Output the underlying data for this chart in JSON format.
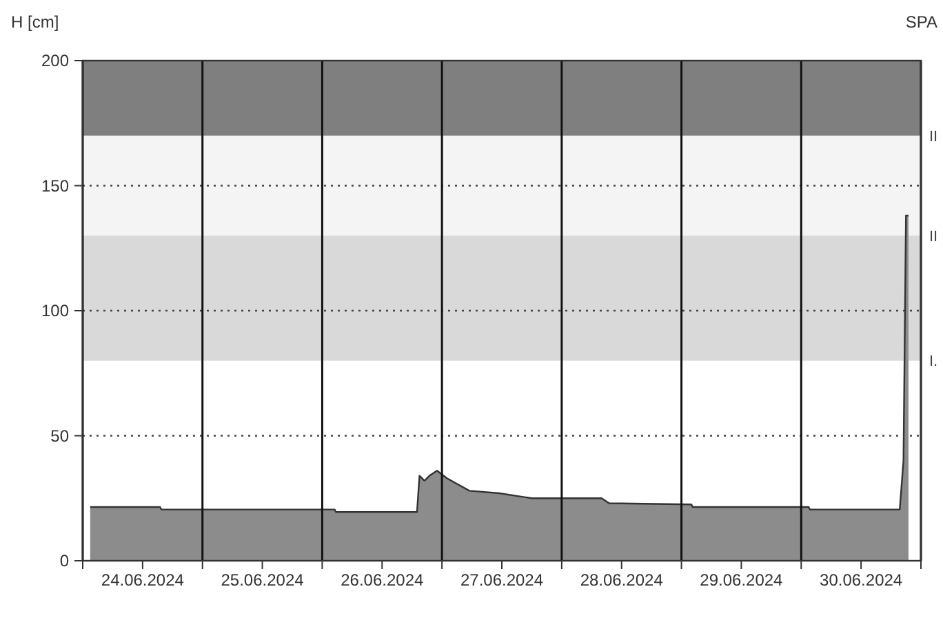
{
  "chart_data": {
    "type": "area",
    "ylabel": "H [cm]",
    "annotations": [
      "SPA"
    ],
    "x": [
      "2024-06-24T01:30",
      "2024-06-24T15:30",
      "2024-06-24T15:45",
      "2024-06-26T02:30",
      "2024-06-26T02:45",
      "2024-06-26T19:00",
      "2024-06-26T19:30",
      "2024-06-26T20:30",
      "2024-06-26T21:30",
      "2024-06-26T23:00",
      "2024-06-27T01:00",
      "2024-06-27T05:30",
      "2024-06-27T11:30",
      "2024-06-27T18:00",
      "2024-06-28T08:00",
      "2024-06-28T09:30",
      "2024-06-29T02:00",
      "2024-06-29T02:15",
      "2024-06-30T01:30",
      "2024-06-30T01:45",
      "2024-06-30T19:45",
      "2024-06-30T20:30",
      "2024-06-30T21:00",
      "2024-06-30T21:30"
    ],
    "series": [
      {
        "color": "#8c8c8c",
        "values": [
          21.5,
          21.5,
          20.5,
          20.5,
          19.5,
          19.5,
          34,
          32,
          34,
          36,
          33,
          28,
          27,
          25,
          25,
          23,
          22.5,
          21.5,
          21.5,
          20.5,
          20.5,
          40,
          138,
          138
        ]
      }
    ],
    "xlim": [
      "2024-06-24T00:00",
      "2024-07-01T00:00"
    ],
    "xticks": [
      {
        "value": "2024-06-24T00:00",
        "label": null
      },
      {
        "value": "2024-06-24T12:00",
        "label": "24.06.2024"
      },
      {
        "value": "2024-06-25T00:00",
        "label": null
      },
      {
        "value": "2024-06-25T12:00",
        "label": "25.06.2024"
      },
      {
        "value": "2024-06-26T00:00",
        "label": null
      },
      {
        "value": "2024-06-26T12:00",
        "label": "26.06.2024"
      },
      {
        "value": "2024-06-27T00:00",
        "label": null
      },
      {
        "value": "2024-06-27T12:00",
        "label": "27.06.2024"
      },
      {
        "value": "2024-06-28T00:00",
        "label": null
      },
      {
        "value": "2024-06-28T12:00",
        "label": "28.06.2024"
      },
      {
        "value": "2024-06-29T00:00",
        "label": null
      },
      {
        "value": "2024-06-29T12:00",
        "label": "29.06.2024"
      },
      {
        "value": "2024-06-30T00:00",
        "label": null
      },
      {
        "value": "2024-06-30T12:00",
        "label": "30.06.2024"
      },
      {
        "value": "2024-07-01T00:00",
        "label": null
      }
    ],
    "ylim": [
      0,
      200
    ],
    "yticks": [
      0,
      50,
      100,
      150,
      200
    ],
    "grid": true,
    "bands": [
      {
        "axis": "y",
        "from": 170,
        "to": 200,
        "label": "II",
        "color": "#7f7f7f"
      },
      {
        "axis": "y",
        "from": 130,
        "to": 170,
        "label": "II",
        "color": "#f4f4f4"
      },
      {
        "axis": "y",
        "from": 80,
        "to": 130,
        "label": "I.",
        "color": "#d9d9d9"
      }
    ]
  }
}
